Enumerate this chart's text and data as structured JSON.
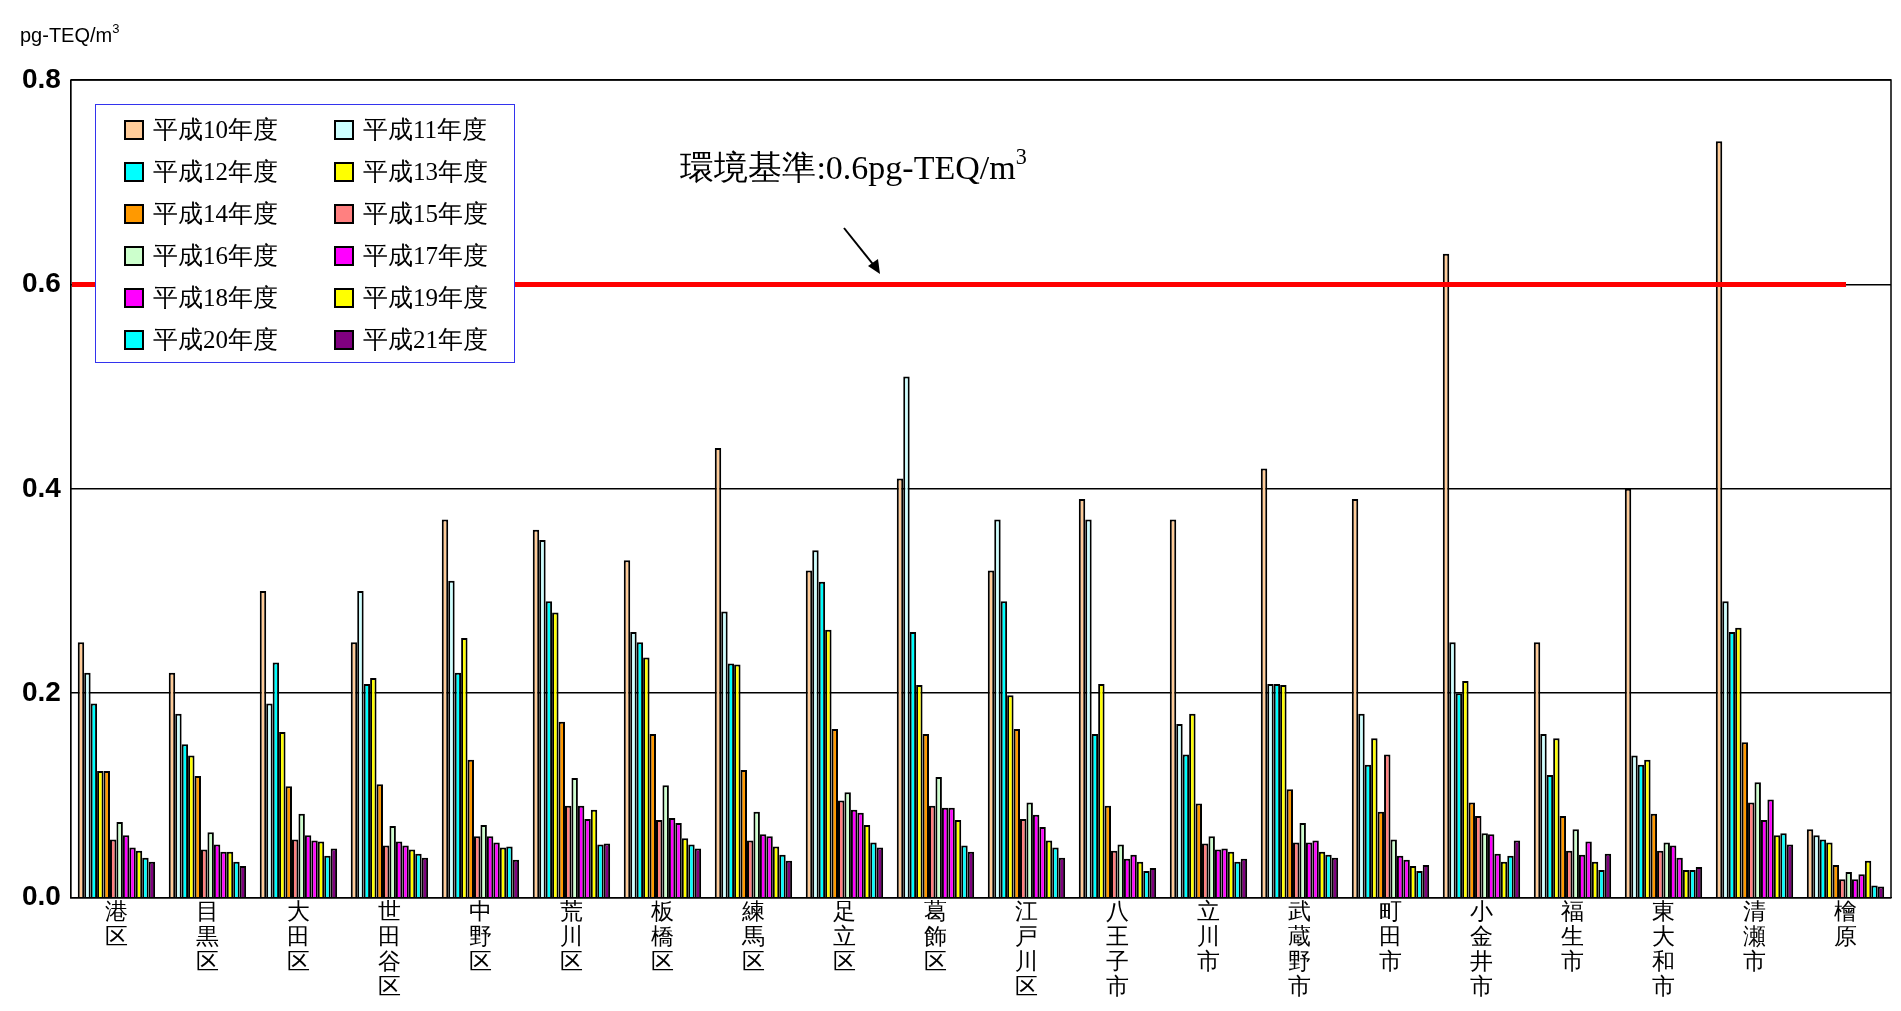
{
  "chart_data": {
    "type": "bar",
    "ylabel": "pg-TEQ/m$^{3}$",
    "categories": [
      "港区",
      "目黒区",
      "大田区",
      "世田谷区",
      "中野区",
      "荒川区",
      "板橋区",
      "練馬区",
      "足立区",
      "葛飾区",
      "江戸川区",
      "八王子市",
      "立川市",
      "武蔵野市",
      "町田市",
      "小金井市",
      "福生市",
      "東大和市",
      "清瀬市",
      "檜原"
    ],
    "series": [
      {
        "name": "平成10年度",
        "color": "#ffcc99",
        "values": [
          0.25,
          0.22,
          0.3,
          0.25,
          0.37,
          0.36,
          0.33,
          0.44,
          0.32,
          0.41,
          0.32,
          0.39,
          0.37,
          0.42,
          0.39,
          0.63,
          0.25,
          0.4,
          0.74,
          0.067
        ]
      },
      {
        "name": "平成11年度",
        "color": "#ccffff",
        "values": [
          0.22,
          0.18,
          0.19,
          0.3,
          0.31,
          0.35,
          0.26,
          0.28,
          0.34,
          0.51,
          0.37,
          0.37,
          0.17,
          0.209,
          0.18,
          0.25,
          0.16,
          0.139,
          0.29,
          0.061
        ]
      },
      {
        "name": "平成12年度",
        "color": "#00ffff",
        "values": [
          0.19,
          0.15,
          0.23,
          0.209,
          0.22,
          0.29,
          0.25,
          0.229,
          0.309,
          0.26,
          0.29,
          0.16,
          0.14,
          0.209,
          0.13,
          0.2,
          0.12,
          0.13,
          0.26,
          0.057
        ]
      },
      {
        "name": "平成13年度",
        "color": "#ffff00",
        "values": [
          0.124,
          0.139,
          0.162,
          0.215,
          0.254,
          0.279,
          0.235,
          0.228,
          0.262,
          0.208,
          0.198,
          0.209,
          0.18,
          0.208,
          0.156,
          0.212,
          0.156,
          0.135,
          0.264,
          0.054
        ]
      },
      {
        "name": "平成14年度",
        "color": "#ff9900",
        "values": [
          0.124,
          0.119,
          0.109,
          0.111,
          0.135,
          0.172,
          0.16,
          0.125,
          0.165,
          0.16,
          0.165,
          0.09,
          0.092,
          0.106,
          0.084,
          0.093,
          0.08,
          0.082,
          0.152,
          0.032
        ]
      },
      {
        "name": "平成15年度",
        "color": "#ff8080",
        "values": [
          0.057,
          0.047,
          0.057,
          0.051,
          0.06,
          0.09,
          0.076,
          0.056,
          0.095,
          0.09,
          0.077,
          0.046,
          0.053,
          0.054,
          0.14,
          0.08,
          0.046,
          0.046,
          0.093,
          0.018
        ]
      },
      {
        "name": "平成16年度",
        "color": "#ccffcc",
        "values": [
          0.074,
          0.064,
          0.082,
          0.07,
          0.071,
          0.117,
          0.11,
          0.084,
          0.103,
          0.118,
          0.093,
          0.052,
          0.06,
          0.073,
          0.057,
          0.063,
          0.067,
          0.054,
          0.113,
          0.025
        ]
      },
      {
        "name": "平成17年度",
        "color": "#ff00ff",
        "values": [
          0.061,
          0.052,
          0.061,
          0.055,
          0.06,
          0.09,
          0.078,
          0.062,
          0.086,
          0.088,
          0.081,
          0.038,
          0.047,
          0.054,
          0.041,
          0.062,
          0.042,
          0.051,
          0.076,
          0.018
        ]
      },
      {
        "name": "平成18年度",
        "color": "#ff00ff",
        "values": [
          0.049,
          0.045,
          0.056,
          0.051,
          0.054,
          0.077,
          0.073,
          0.06,
          0.083,
          0.088,
          0.069,
          0.042,
          0.048,
          0.056,
          0.037,
          0.043,
          0.055,
          0.039,
          0.096,
          0.023
        ]
      },
      {
        "name": "平成19年度",
        "color": "#ffff00",
        "values": [
          0.046,
          0.045,
          0.055,
          0.047,
          0.049,
          0.086,
          0.058,
          0.05,
          0.071,
          0.076,
          0.056,
          0.035,
          0.045,
          0.045,
          0.031,
          0.035,
          0.035,
          0.027,
          0.061,
          0.036
        ]
      },
      {
        "name": "平成20年度",
        "color": "#00ffff",
        "values": [
          0.039,
          0.035,
          0.041,
          0.043,
          0.05,
          0.052,
          0.052,
          0.042,
          0.054,
          0.051,
          0.049,
          0.026,
          0.035,
          0.042,
          0.026,
          0.041,
          0.027,
          0.027,
          0.063,
          0.012
        ]
      },
      {
        "name": "平成21年度",
        "color": "#800080",
        "values": [
          0.035,
          0.031,
          0.048,
          0.039,
          0.037,
          0.053,
          0.048,
          0.036,
          0.049,
          0.045,
          0.039,
          0.029,
          0.038,
          0.039,
          0.032,
          0.056,
          0.043,
          0.03,
          0.052,
          0.011
        ]
      }
    ],
    "ylim": [
      0,
      0.8
    ],
    "yticks": [
      {
        "value": 0,
        "label": "0.0"
      },
      0.2,
      0.4,
      0.6,
      0.8
    ],
    "grid": "y",
    "legend": "top left",
    "ref_lines": [
      {
        "axis": "y",
        "value": 0.6,
        "label": "環境基準:0.6pg-TEQ/m$^{3}$",
        "color": "#ff0000"
      }
    ]
  }
}
